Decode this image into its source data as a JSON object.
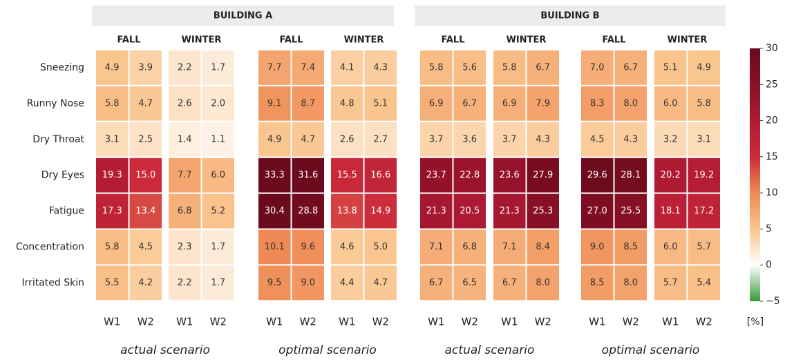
{
  "chart_data": {
    "type": "heatmap",
    "row_labels": [
      "Sneezing",
      "Runny Nose",
      "Dry Throat",
      "Dry Eyes",
      "Fatigue",
      "Concentration",
      "Irritated Skin"
    ],
    "buildings": [
      {
        "title": "BUILDING A",
        "scenarios": [
          {
            "label": "actual scenario",
            "seasons": [
              {
                "name": "FALL",
                "columns": [
                  "W1",
                  "W2"
                ],
                "values": [
                  [
                    4.9,
                    3.9
                  ],
                  [
                    5.8,
                    4.7
                  ],
                  [
                    3.1,
                    2.5
                  ],
                  [
                    19.3,
                    15.0
                  ],
                  [
                    17.3,
                    13.4
                  ],
                  [
                    5.8,
                    4.5
                  ],
                  [
                    5.5,
                    4.2
                  ]
                ],
                "value_labels": [
                  [
                    "4.9",
                    "3.9"
                  ],
                  [
                    "5.8",
                    "4.7"
                  ],
                  [
                    "3.1",
                    "2.5"
                  ],
                  [
                    "19.3",
                    "15.0"
                  ],
                  [
                    "17.3",
                    "13.4"
                  ],
                  [
                    "5.8",
                    "4.5"
                  ],
                  [
                    "5.5",
                    "4.2"
                  ]
                ]
              },
              {
                "name": "WINTER",
                "columns": [
                  "W1",
                  "W2"
                ],
                "values": [
                  [
                    2.2,
                    1.7
                  ],
                  [
                    2.6,
                    2.0
                  ],
                  [
                    1.4,
                    1.1
                  ],
                  [
                    7.7,
                    6.0
                  ],
                  [
                    6.8,
                    5.2
                  ],
                  [
                    2.3,
                    1.7
                  ],
                  [
                    2.2,
                    1.7
                  ]
                ],
                "value_labels": [
                  [
                    "2.2",
                    "1.7"
                  ],
                  [
                    "2.6",
                    "2.0"
                  ],
                  [
                    "1.4",
                    "1.1"
                  ],
                  [
                    "7.7",
                    "6.0"
                  ],
                  [
                    "6.8",
                    "5.2"
                  ],
                  [
                    "2.3",
                    "1.7"
                  ],
                  [
                    "2.2",
                    "1.7"
                  ]
                ]
              }
            ]
          },
          {
            "label": "optimal scenario",
            "seasons": [
              {
                "name": "FALL",
                "columns": [
                  "W1",
                  "W2"
                ],
                "values": [
                  [
                    7.7,
                    7.4
                  ],
                  [
                    9.1,
                    8.7
                  ],
                  [
                    4.9,
                    4.7
                  ],
                  [
                    33.3,
                    31.6
                  ],
                  [
                    30.4,
                    28.8
                  ],
                  [
                    10.1,
                    9.6
                  ],
                  [
                    9.5,
                    9.0
                  ]
                ],
                "value_labels": [
                  [
                    "7.7",
                    "7.4"
                  ],
                  [
                    "9.1",
                    "8.7"
                  ],
                  [
                    "4.9",
                    "4.7"
                  ],
                  [
                    "33.3",
                    "31.6"
                  ],
                  [
                    "30.4",
                    "28.8"
                  ],
                  [
                    "10.1",
                    "9.6"
                  ],
                  [
                    "9.5",
                    "9.0"
                  ]
                ]
              },
              {
                "name": "WINTER",
                "columns": [
                  "W1",
                  "W2"
                ],
                "values": [
                  [
                    4.1,
                    4.3
                  ],
                  [
                    4.8,
                    5.1
                  ],
                  [
                    2.6,
                    2.7
                  ],
                  [
                    15.5,
                    16.6
                  ],
                  [
                    13.8,
                    14.9
                  ],
                  [
                    4.6,
                    5.0
                  ],
                  [
                    4.4,
                    4.7
                  ]
                ],
                "value_labels": [
                  [
                    "4.1",
                    "4.3"
                  ],
                  [
                    "4.8",
                    "5.1"
                  ],
                  [
                    "2.6",
                    "2.7"
                  ],
                  [
                    "15.5",
                    "16.6"
                  ],
                  [
                    "13.8",
                    "14.9"
                  ],
                  [
                    "4.6",
                    "5.0"
                  ],
                  [
                    "4.4",
                    "4.7"
                  ]
                ]
              }
            ]
          }
        ]
      },
      {
        "title": "BUILDING B",
        "scenarios": [
          {
            "label": "actual scenario",
            "seasons": [
              {
                "name": "FALL",
                "columns": [
                  "W1",
                  "W2"
                ],
                "values": [
                  [
                    5.8,
                    5.6
                  ],
                  [
                    6.9,
                    6.7
                  ],
                  [
                    3.7,
                    3.6
                  ],
                  [
                    23.7,
                    22.8
                  ],
                  [
                    21.3,
                    20.5
                  ],
                  [
                    7.1,
                    6.8
                  ],
                  [
                    6.7,
                    6.5
                  ]
                ],
                "value_labels": [
                  [
                    "5.8",
                    "5.6"
                  ],
                  [
                    "6.9",
                    "6.7"
                  ],
                  [
                    "3.7",
                    "3.6"
                  ],
                  [
                    "23.7",
                    "22.8"
                  ],
                  [
                    "21.3",
                    "20.5"
                  ],
                  [
                    "7.1",
                    "6.8"
                  ],
                  [
                    "6.7",
                    "6.5"
                  ]
                ]
              },
              {
                "name": "WINTER",
                "columns": [
                  "W1",
                  "W2"
                ],
                "values": [
                  [
                    5.8,
                    6.7
                  ],
                  [
                    6.9,
                    7.9
                  ],
                  [
                    3.7,
                    4.3
                  ],
                  [
                    23.6,
                    27.9
                  ],
                  [
                    21.3,
                    25.3
                  ],
                  [
                    7.1,
                    8.4
                  ],
                  [
                    6.7,
                    8.0
                  ]
                ],
                "value_labels": [
                  [
                    "5.8",
                    "6.7"
                  ],
                  [
                    "6.9",
                    "7.9"
                  ],
                  [
                    "3.7",
                    "4.3"
                  ],
                  [
                    "23.6",
                    "27.9"
                  ],
                  [
                    "21.3",
                    "25.3"
                  ],
                  [
                    "7.1",
                    "8.4"
                  ],
                  [
                    "6.7",
                    "8.0"
                  ]
                ]
              }
            ]
          },
          {
            "label": "optimal scenario",
            "seasons": [
              {
                "name": "FALL",
                "columns": [
                  "W1",
                  "W2"
                ],
                "values": [
                  [
                    7.0,
                    6.7
                  ],
                  [
                    8.3,
                    8.0
                  ],
                  [
                    4.5,
                    4.3
                  ],
                  [
                    29.6,
                    28.1
                  ],
                  [
                    27.0,
                    25.5
                  ],
                  [
                    9.0,
                    8.5
                  ],
                  [
                    8.5,
                    8.0
                  ]
                ],
                "value_labels": [
                  [
                    "7.0",
                    "6.7"
                  ],
                  [
                    "8.3",
                    "8.0"
                  ],
                  [
                    "4.5",
                    "4.3"
                  ],
                  [
                    "29.6",
                    "28.1"
                  ],
                  [
                    "27.0",
                    "25.5"
                  ],
                  [
                    "9.0",
                    "8.5"
                  ],
                  [
                    "8.5",
                    "8.0"
                  ]
                ]
              },
              {
                "name": "WINTER",
                "columns": [
                  "W1",
                  "W2"
                ],
                "values": [
                  [
                    5.1,
                    4.9
                  ],
                  [
                    6.0,
                    5.8
                  ],
                  [
                    3.2,
                    3.1
                  ],
                  [
                    20.2,
                    19.2
                  ],
                  [
                    18.1,
                    17.2
                  ],
                  [
                    6.0,
                    5.7
                  ],
                  [
                    5.7,
                    5.4
                  ]
                ],
                "value_labels": [
                  [
                    "5.1",
                    "4.9"
                  ],
                  [
                    "6.0",
                    "5.8"
                  ],
                  [
                    "3.2",
                    "3.1"
                  ],
                  [
                    "20.2",
                    "19.2"
                  ],
                  [
                    "18.1",
                    "17.2"
                  ],
                  [
                    "6.0",
                    "5.7"
                  ],
                  [
                    "5.7",
                    "5.4"
                  ]
                ]
              }
            ]
          }
        ]
      }
    ],
    "colorbar": {
      "lim": [
        -5,
        30
      ],
      "ticks": [
        {
          "value": -5,
          "label": "−5"
        },
        0,
        5,
        10,
        15,
        20,
        25,
        30
      ],
      "label": "[%]",
      "colors_negative": [
        "#3b9a3b",
        "#ffffff"
      ],
      "colors_positive": [
        "#ffffff",
        "#fac58e",
        "#ef8a55",
        "#cc2a3a",
        "#b01a33",
        "#8a0f26",
        "#6a0a1c"
      ]
    }
  }
}
